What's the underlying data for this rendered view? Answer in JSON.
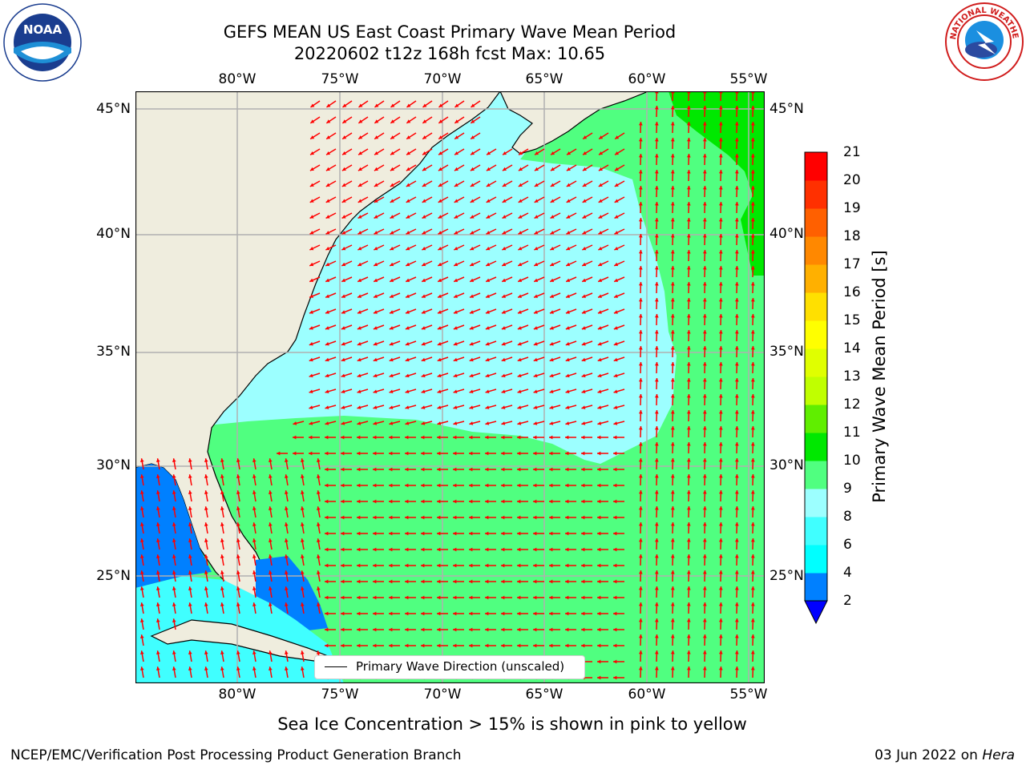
{
  "title": {
    "line1": "GEFS MEAN US East Coast Primary Wave Mean Period",
    "line2": "20220602 t12z 168h fcst   Max: 10.65"
  },
  "map": {
    "lon_labels": [
      "80°W",
      "75°W",
      "70°W",
      "65°W",
      "60°W",
      "55°W"
    ],
    "lat_labels": [
      "45°N",
      "40°N",
      "35°N",
      "30°N",
      "25°N"
    ],
    "legend_label": "Primary Wave Direction (unscaled)",
    "arrow_color": "#ff0000",
    "land_color": "#efedde",
    "grid_color": "#b0b0b0"
  },
  "colorbar": {
    "label": "Primary Wave Mean Period [s]",
    "ticks": [
      "2",
      "4",
      "6",
      "8",
      "9",
      "10",
      "11",
      "12",
      "13",
      "14",
      "15",
      "16",
      "17",
      "18",
      "19",
      "20",
      "21"
    ],
    "colors": [
      "#0000ff",
      "#0080ff",
      "#00ffff",
      "#40ffff",
      "#9cffff",
      "#50ff80",
      "#00e800",
      "#60ee00",
      "#c0ff00",
      "#e0ff00",
      "#ffff00",
      "#ffe000",
      "#ffb000",
      "#ff8800",
      "#ff6000",
      "#ff3000",
      "#ff0000"
    ]
  },
  "note": "Sea Ice Concentration > 15% is shown in pink to yellow",
  "footer": {
    "left": "NCEP/EMC/Verification Post Processing Product Generation Branch",
    "right_date": "03 Jun 2022 on ",
    "right_host": "Hera"
  },
  "logos": {
    "noaa_text": "NOAA",
    "nws_text": "NATIONAL WEATHER SERVICE"
  }
}
